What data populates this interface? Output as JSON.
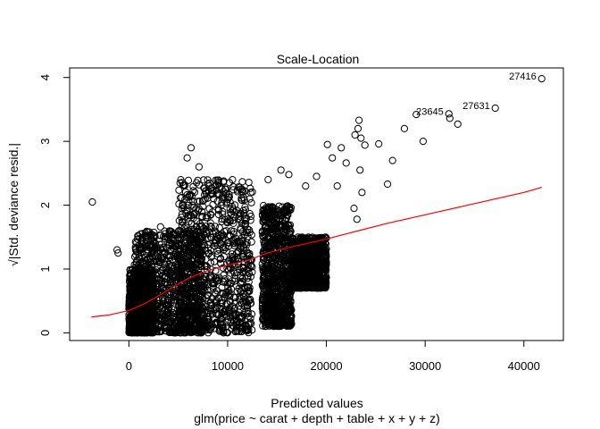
{
  "chart_data": {
    "type": "scatter",
    "title": "Scale-Location",
    "xlabel": "Predicted values",
    "xlabel_sub": "glm(price ~ carat + depth + table + x + y + z)",
    "ylabel": "√|Std. deviance resid.|",
    "xlim": [
      -6000,
      44000
    ],
    "ylim": [
      -0.12,
      4.15
    ],
    "x_ticks": [
      0,
      10000,
      20000,
      30000,
      40000
    ],
    "x_tick_labels": [
      "0",
      "10000",
      "20000",
      "30000",
      "40000"
    ],
    "y_ticks": [
      0,
      1,
      2,
      3,
      4
    ],
    "y_tick_labels": [
      "0",
      "1",
      "2",
      "3",
      "4"
    ],
    "point_color": "#000000",
    "smooth_color": "#ff0000",
    "dense_regions": [
      {
        "x_min": 0,
        "x_max": 2500,
        "y_min": 0.0,
        "y_max": 1.0
      },
      {
        "x_min": 500,
        "x_max": 7500,
        "y_min": 0.0,
        "y_max": 1.6
      },
      {
        "x_min": 5000,
        "x_max": 12500,
        "y_min": 0.0,
        "y_max": 2.4
      },
      {
        "x_min": 13500,
        "x_max": 16500,
        "y_min": 0.1,
        "y_max": 2.0
      },
      {
        "x_min": 16500,
        "x_max": 20000,
        "y_min": 0.7,
        "y_max": 1.5
      }
    ],
    "outliers": [
      {
        "x": -3700,
        "y": 2.05
      },
      {
        "x": -1200,
        "y": 1.3
      },
      {
        "x": -1100,
        "y": 1.25
      },
      {
        "x": 900,
        "y": 1.52
      },
      {
        "x": 2100,
        "y": 1.38
      },
      {
        "x": 3200,
        "y": 1.66
      },
      {
        "x": 5900,
        "y": 2.74
      },
      {
        "x": 6300,
        "y": 2.9
      },
      {
        "x": 7100,
        "y": 2.6
      },
      {
        "x": 14100,
        "y": 2.4
      },
      {
        "x": 15400,
        "y": 2.55
      },
      {
        "x": 16200,
        "y": 2.48
      },
      {
        "x": 17900,
        "y": 2.3
      },
      {
        "x": 19000,
        "y": 2.45
      },
      {
        "x": 20100,
        "y": 2.95
      },
      {
        "x": 20600,
        "y": 2.74
      },
      {
        "x": 21100,
        "y": 2.3
      },
      {
        "x": 21500,
        "y": 2.9
      },
      {
        "x": 22000,
        "y": 2.66
      },
      {
        "x": 22900,
        "y": 3.1
      },
      {
        "x": 23300,
        "y": 3.33
      },
      {
        "x": 23200,
        "y": 3.2
      },
      {
        "x": 23500,
        "y": 3.05
      },
      {
        "x": 23900,
        "y": 2.94
      },
      {
        "x": 23400,
        "y": 2.55
      },
      {
        "x": 23600,
        "y": 2.2
      },
      {
        "x": 22800,
        "y": 1.95
      },
      {
        "x": 23100,
        "y": 1.78
      },
      {
        "x": 25300,
        "y": 2.96
      },
      {
        "x": 26200,
        "y": 2.33
      },
      {
        "x": 26700,
        "y": 2.7
      },
      {
        "x": 27900,
        "y": 3.2
      },
      {
        "x": 29100,
        "y": 3.42
      },
      {
        "x": 29800,
        "y": 3.0
      },
      {
        "x": 32400,
        "y": 3.43
      },
      {
        "x": 32500,
        "y": 3.36
      },
      {
        "x": 33300,
        "y": 3.27
      },
      {
        "x": 37100,
        "y": 3.52
      },
      {
        "x": 41800,
        "y": 3.98
      }
    ],
    "labeled_points": [
      {
        "label": "27416",
        "x": 41800,
        "y": 3.98
      },
      {
        "label": "23645",
        "x": 32400,
        "y": 3.43
      },
      {
        "label": "27631",
        "x": 37100,
        "y": 3.52
      }
    ],
    "smooth_line": {
      "x": [
        -3800,
        -2000,
        0,
        1500,
        3000,
        4500,
        6000,
        7500,
        9000,
        10500,
        12000,
        14000,
        16000,
        18000,
        20000,
        22000,
        24000,
        26000,
        28000,
        30000,
        32000,
        34000,
        36000,
        38000,
        40000,
        41800
      ],
      "y": [
        0.25,
        0.28,
        0.35,
        0.45,
        0.58,
        0.72,
        0.85,
        0.95,
        1.02,
        1.08,
        1.13,
        1.25,
        1.33,
        1.4,
        1.47,
        1.55,
        1.63,
        1.71,
        1.78,
        1.85,
        1.92,
        1.99,
        2.06,
        2.13,
        2.2,
        2.28
      ]
    }
  }
}
